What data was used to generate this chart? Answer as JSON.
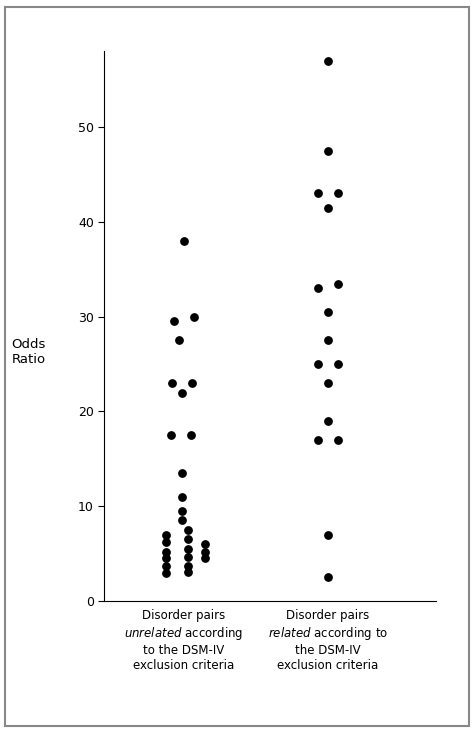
{
  "group1_points": [
    [
      1.0,
      38.0
    ],
    [
      0.93,
      29.5
    ],
    [
      1.07,
      30.0
    ],
    [
      0.97,
      27.5
    ],
    [
      0.92,
      23.0
    ],
    [
      1.06,
      23.0
    ],
    [
      0.99,
      22.0
    ],
    [
      0.91,
      17.5
    ],
    [
      1.05,
      17.5
    ],
    [
      0.99,
      13.5
    ],
    [
      0.99,
      11.0
    ],
    [
      0.99,
      9.5
    ],
    [
      0.99,
      8.5
    ],
    [
      0.88,
      7.0
    ],
    [
      1.03,
      7.5
    ],
    [
      0.88,
      6.2
    ],
    [
      1.03,
      6.5
    ],
    [
      1.15,
      6.0
    ],
    [
      0.88,
      5.2
    ],
    [
      1.03,
      5.5
    ],
    [
      1.15,
      5.2
    ],
    [
      0.88,
      4.5
    ],
    [
      1.03,
      4.7
    ],
    [
      1.15,
      4.5
    ],
    [
      0.88,
      3.7
    ],
    [
      1.03,
      3.7
    ],
    [
      0.88,
      3.0
    ],
    [
      1.03,
      3.1
    ]
  ],
  "group2_points": [
    [
      2.0,
      57.0
    ],
    [
      2.0,
      47.5
    ],
    [
      1.93,
      43.0
    ],
    [
      2.07,
      43.0
    ],
    [
      2.0,
      41.5
    ],
    [
      1.93,
      33.0
    ],
    [
      2.07,
      33.5
    ],
    [
      2.0,
      30.5
    ],
    [
      2.0,
      27.5
    ],
    [
      1.93,
      25.0
    ],
    [
      2.07,
      25.0
    ],
    [
      2.0,
      23.0
    ],
    [
      2.0,
      19.0
    ],
    [
      1.93,
      17.0
    ],
    [
      2.07,
      17.0
    ],
    [
      2.0,
      7.0
    ],
    [
      2.0,
      2.5
    ]
  ],
  "ylabel": "Odds\nRatio",
  "ylim": [
    0,
    58
  ],
  "yticks": [
    0,
    10,
    20,
    30,
    40,
    50
  ],
  "xlim": [
    0.45,
    2.75
  ],
  "dot_color": "#000000",
  "dot_size": 28,
  "background_color": "#ffffff",
  "font_size_labels": 8.5,
  "font_size_ylabel": 9.5,
  "font_size_ticks": 9
}
